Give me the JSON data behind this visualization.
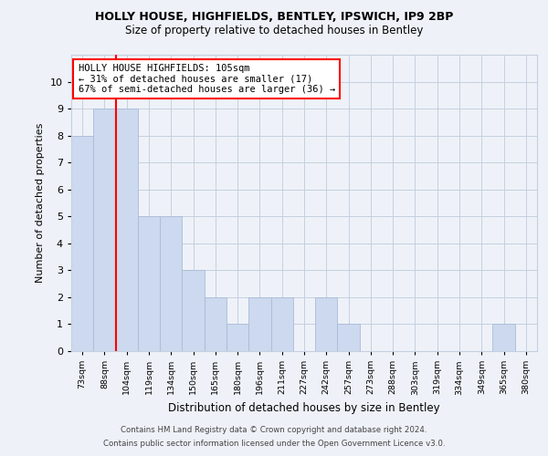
{
  "title1": "HOLLY HOUSE, HIGHFIELDS, BENTLEY, IPSWICH, IP9 2BP",
  "title2": "Size of property relative to detached houses in Bentley",
  "xlabel": "Distribution of detached houses by size in Bentley",
  "ylabel": "Number of detached properties",
  "categories": [
    "73sqm",
    "88sqm",
    "104sqm",
    "119sqm",
    "134sqm",
    "150sqm",
    "165sqm",
    "180sqm",
    "196sqm",
    "211sqm",
    "227sqm",
    "242sqm",
    "257sqm",
    "273sqm",
    "288sqm",
    "303sqm",
    "319sqm",
    "334sqm",
    "349sqm",
    "365sqm",
    "380sqm"
  ],
  "values": [
    8,
    9,
    9,
    5,
    5,
    3,
    2,
    1,
    2,
    2,
    0,
    2,
    1,
    0,
    0,
    0,
    0,
    0,
    0,
    1,
    0
  ],
  "bar_color": "#ccd9ee",
  "bar_edgecolor": "#aabbd8",
  "redline_x": 1.5,
  "annotation_text": "HOLLY HOUSE HIGHFIELDS: 105sqm\n← 31% of detached houses are smaller (17)\n67% of semi-detached houses are larger (36) →",
  "ylim": [
    0,
    11
  ],
  "yticks": [
    0,
    1,
    2,
    3,
    4,
    5,
    6,
    7,
    8,
    9,
    10
  ],
  "footer1": "Contains HM Land Registry data © Crown copyright and database right 2024.",
  "footer2": "Contains public sector information licensed under the Open Government Licence v3.0.",
  "background_color": "#eef2f8",
  "plot_background": "#eef2f8",
  "grid_color": "#c5cfe0"
}
